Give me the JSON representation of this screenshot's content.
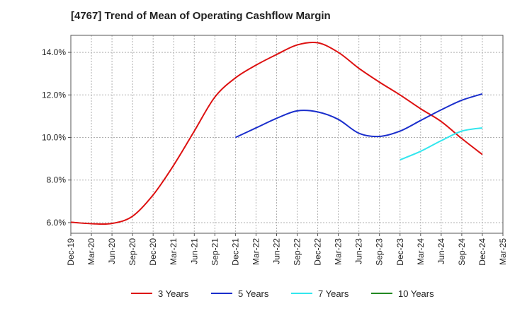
{
  "chart_data": {
    "type": "line",
    "title": "[4767]  Trend of Mean of Operating Cashflow Margin",
    "xlabel": "",
    "ylabel": "",
    "x": [
      "Dec-19",
      "Mar-20",
      "Jun-20",
      "Sep-20",
      "Dec-20",
      "Mar-21",
      "Jun-21",
      "Sep-21",
      "Dec-21",
      "Mar-22",
      "Jun-22",
      "Sep-22",
      "Dec-22",
      "Mar-23",
      "Jun-23",
      "Sep-23",
      "Dec-23",
      "Mar-24",
      "Jun-24",
      "Sep-24",
      "Dec-24",
      "Mar-25"
    ],
    "ylim": [
      5.5,
      14.8
    ],
    "yticks": [
      6.0,
      8.0,
      10.0,
      12.0,
      14.0
    ],
    "ytick_labels": [
      "6.0%",
      "8.0%",
      "10.0%",
      "12.0%",
      "14.0%"
    ],
    "grid": true,
    "legend": "bottom",
    "series": [
      {
        "name": "3 Years",
        "color": "#dd1111",
        "values": [
          6.02,
          5.95,
          5.96,
          6.3,
          7.3,
          8.7,
          10.3,
          11.9,
          12.8,
          13.4,
          13.9,
          14.35,
          14.45,
          14.0,
          13.25,
          12.6,
          12.0,
          11.35,
          10.75,
          9.95,
          9.2,
          null
        ]
      },
      {
        "name": "5 Years",
        "color": "#1a2ecc",
        "values": [
          null,
          null,
          null,
          null,
          null,
          null,
          null,
          null,
          10.0,
          10.45,
          10.9,
          11.25,
          11.2,
          10.85,
          10.2,
          10.05,
          10.3,
          10.8,
          11.3,
          11.75,
          12.05,
          null
        ]
      },
      {
        "name": "7 Years",
        "color": "#33e6ee",
        "values": [
          null,
          null,
          null,
          null,
          null,
          null,
          null,
          null,
          null,
          null,
          null,
          null,
          null,
          null,
          null,
          null,
          8.95,
          9.35,
          9.85,
          10.3,
          10.45,
          null
        ]
      },
      {
        "name": "10 Years",
        "color": "#228822",
        "values": [
          null,
          null,
          null,
          null,
          null,
          null,
          null,
          null,
          null,
          null,
          null,
          null,
          null,
          null,
          null,
          null,
          null,
          null,
          null,
          null,
          null,
          null
        ]
      }
    ]
  }
}
